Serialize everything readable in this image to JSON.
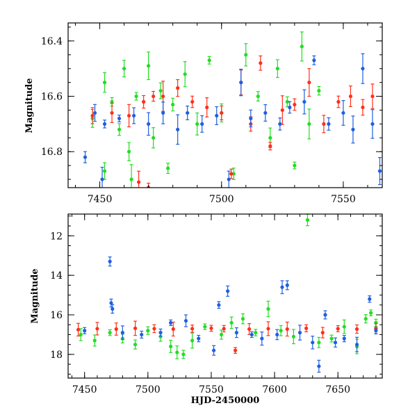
{
  "chart_data": [
    {
      "type": "scatter",
      "panel": "top",
      "title": "",
      "xlabel": "",
      "ylabel": "Magnitude",
      "xlim": [
        7437,
        7566
      ],
      "ylim": [
        16.93,
        16.335
      ],
      "y_inverted": true,
      "x_ticks": [
        7450,
        7500,
        7550
      ],
      "x_tick_labels": [
        "7450",
        "7500",
        "7550"
      ],
      "y_ticks": [
        16.4,
        16.6,
        16.8
      ],
      "y_tick_labels": [
        "16.4",
        "16.6",
        "16.8"
      ],
      "series": [
        {
          "color": "#22dd22",
          "points": [
            [
              7447,
              16.68
            ],
            [
              7452,
              16.55
            ],
            [
              7455,
              16.62
            ],
            [
              7458,
              16.72
            ],
            [
              7460,
              16.5
            ],
            [
              7462,
              16.8
            ],
            [
              7465,
              16.6
            ],
            [
              7470,
              16.49
            ],
            [
              7472,
              16.75
            ],
            [
              7475,
              16.58
            ],
            [
              7480,
              16.63
            ],
            [
              7485,
              16.52
            ],
            [
              7490,
              16.7
            ],
            [
              7495,
              16.47
            ],
            [
              7500,
              16.66
            ],
            [
              7505,
              16.88
            ],
            [
              7510,
              16.45
            ],
            [
              7515,
              16.6
            ],
            [
              7520,
              16.75
            ],
            [
              7523,
              16.5
            ],
            [
              7527,
              16.62
            ],
            [
              7530,
              16.85
            ],
            [
              7533,
              16.42
            ],
            [
              7536,
              16.7
            ],
            [
              7540,
              16.58
            ],
            [
              7452,
              16.87
            ],
            [
              7463,
              16.9
            ],
            [
              7478,
              16.86
            ]
          ]
        },
        {
          "color": "#ff2f1a",
          "points": [
            [
              7447,
              16.67
            ],
            [
              7455,
              16.66
            ],
            [
              7462,
              16.67
            ],
            [
              7468,
              16.62
            ],
            [
              7472,
              16.6
            ],
            [
              7476,
              16.6
            ],
            [
              7482,
              16.57
            ],
            [
              7488,
              16.62
            ],
            [
              7494,
              16.64
            ],
            [
              7500,
              16.66
            ],
            [
              7504,
              16.88
            ],
            [
              7508,
              16.55
            ],
            [
              7512,
              16.7
            ],
            [
              7516,
              16.48
            ],
            [
              7520,
              16.78
            ],
            [
              7525,
              16.65
            ],
            [
              7530,
              16.63
            ],
            [
              7536,
              16.55
            ],
            [
              7542,
              16.7
            ],
            [
              7548,
              16.62
            ],
            [
              7553,
              16.6
            ],
            [
              7558,
              16.64
            ],
            [
              7562,
              16.6
            ],
            [
              7466,
              16.91
            ],
            [
              7470,
              16.93
            ]
          ]
        },
        {
          "color": "#1f5fe0",
          "points": [
            [
              7444,
              16.82
            ],
            [
              7448,
              16.66
            ],
            [
              7452,
              16.7
            ],
            [
              7458,
              16.68
            ],
            [
              7464,
              16.67
            ],
            [
              7470,
              16.7
            ],
            [
              7476,
              16.66
            ],
            [
              7482,
              16.72
            ],
            [
              7486,
              16.66
            ],
            [
              7492,
              16.7
            ],
            [
              7498,
              16.67
            ],
            [
              7503,
              16.9
            ],
            [
              7508,
              16.55
            ],
            [
              7512,
              16.68
            ],
            [
              7518,
              16.66
            ],
            [
              7524,
              16.7
            ],
            [
              7528,
              16.64
            ],
            [
              7534,
              16.62
            ],
            [
              7538,
              16.47
            ],
            [
              7544,
              16.7
            ],
            [
              7550,
              16.66
            ],
            [
              7554,
              16.72
            ],
            [
              7558,
              16.5
            ],
            [
              7562,
              16.7
            ],
            [
              7565,
              16.87
            ],
            [
              7451,
              16.9
            ]
          ]
        }
      ]
    },
    {
      "type": "scatter",
      "panel": "bottom",
      "title": "",
      "xlabel": "HJD-2450000",
      "ylabel": "Magnitude",
      "xlim": [
        7437,
        7685
      ],
      "ylim": [
        19.2,
        10.9
      ],
      "y_inverted": true,
      "x_ticks": [
        7450,
        7500,
        7550,
        7600,
        7650
      ],
      "x_tick_labels": [
        "7450",
        "7500",
        "7550",
        "7600",
        "7650"
      ],
      "y_ticks": [
        12,
        14,
        16,
        18
      ],
      "y_tick_labels": [
        "12",
        "14",
        "16",
        "18"
      ],
      "series": [
        {
          "color": "#22dd22",
          "points": [
            [
              7447,
              17.0
            ],
            [
              7458,
              17.3
            ],
            [
              7470,
              16.9
            ],
            [
              7480,
              17.2
            ],
            [
              7490,
              17.5
            ],
            [
              7500,
              16.8
            ],
            [
              7510,
              17.1
            ],
            [
              7518,
              17.6
            ],
            [
              7523,
              17.9
            ],
            [
              7528,
              18.0
            ],
            [
              7535,
              17.3
            ],
            [
              7545,
              16.6
            ],
            [
              7558,
              17.0
            ],
            [
              7566,
              16.4
            ],
            [
              7575,
              16.2
            ],
            [
              7585,
              16.9
            ],
            [
              7595,
              15.7
            ],
            [
              7605,
              16.8
            ],
            [
              7615,
              17.1
            ],
            [
              7626,
              11.2
            ],
            [
              7635,
              17.4
            ],
            [
              7645,
              17.2
            ],
            [
              7655,
              16.6
            ],
            [
              7665,
              17.6
            ],
            [
              7672,
              16.2
            ],
            [
              7676,
              15.9
            ],
            [
              7680,
              16.4
            ]
          ]
        },
        {
          "color": "#ff2f1a",
          "points": [
            [
              7445,
              16.75
            ],
            [
              7460,
              16.7
            ],
            [
              7475,
              16.72
            ],
            [
              7490,
              16.68
            ],
            [
              7505,
              16.7
            ],
            [
              7520,
              16.72
            ],
            [
              7535,
              16.7
            ],
            [
              7550,
              16.68
            ],
            [
              7560,
              16.7
            ],
            [
              7569,
              17.8
            ],
            [
              7580,
              16.72
            ],
            [
              7595,
              16.7
            ],
            [
              7610,
              16.72
            ],
            [
              7625,
              16.68
            ],
            [
              7638,
              16.9
            ],
            [
              7650,
              16.7
            ],
            [
              7665,
              16.72
            ],
            [
              7680,
              16.7
            ]
          ]
        },
        {
          "color": "#1f5fe0",
          "points": [
            [
              7450,
              16.8
            ],
            [
              7470,
              13.3
            ],
            [
              7471,
              15.4
            ],
            [
              7472,
              15.7
            ],
            [
              7480,
              16.9
            ],
            [
              7495,
              17.0
            ],
            [
              7510,
              16.9
            ],
            [
              7518,
              16.4
            ],
            [
              7530,
              16.3
            ],
            [
              7540,
              17.2
            ],
            [
              7552,
              17.8
            ],
            [
              7556,
              15.5
            ],
            [
              7563,
              14.8
            ],
            [
              7570,
              16.9
            ],
            [
              7582,
              17.0
            ],
            [
              7590,
              17.2
            ],
            [
              7602,
              17.0
            ],
            [
              7606,
              14.6
            ],
            [
              7610,
              14.5
            ],
            [
              7620,
              16.9
            ],
            [
              7630,
              17.4
            ],
            [
              7635,
              18.6
            ],
            [
              7640,
              16.0
            ],
            [
              7648,
              17.4
            ],
            [
              7655,
              17.2
            ],
            [
              7665,
              17.5
            ],
            [
              7675,
              15.2
            ],
            [
              7680,
              16.8
            ]
          ]
        }
      ]
    }
  ]
}
